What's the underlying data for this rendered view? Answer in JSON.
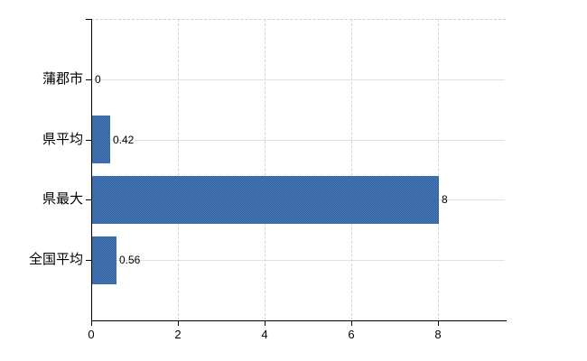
{
  "chart_data": {
    "type": "bar",
    "orientation": "horizontal",
    "title": "",
    "xlabel": "",
    "ylabel": "",
    "categories": [
      "蒲郡市",
      "県平均",
      "県最大",
      "全国平均"
    ],
    "values": [
      0,
      0.42,
      8,
      0.56
    ],
    "value_labels": [
      "0",
      "0.42",
      "8",
      "0.56"
    ],
    "x_ticks": [
      0,
      2,
      4,
      6,
      8
    ],
    "x_tick_labels": [
      "0",
      "2",
      "4",
      "6",
      "8"
    ],
    "xlim": [
      0,
      9.56
    ],
    "legend": "none",
    "grid": {
      "vertical": "dashed",
      "horizontal": "solid-at-category-centers",
      "top_border": "dashed"
    },
    "colors": {
      "bar": "#3E6EAC",
      "bar_dither_dark": "#33629F",
      "bar_dither_light": "#4678B8",
      "axis": "#000000",
      "v_gridline": "#D4D4D4",
      "h_gridline": "#DDE4DA",
      "top_border": "#CFCFCF",
      "text": "#000000",
      "background": "#FFFFFF"
    }
  }
}
